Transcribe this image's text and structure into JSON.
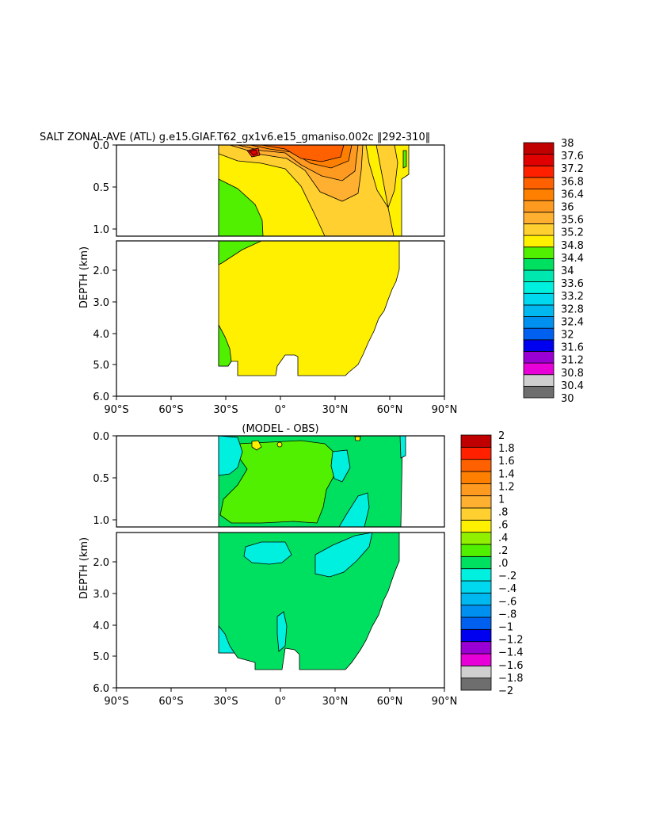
{
  "title": "SALT ZONAL-AVE (ATL) g.e15.GIAF.T62_gx1v6.e15_gmaniso.002c ‖292-310‖",
  "diff_title": "(MODEL - OBS)",
  "palette": {
    "salt": [
      "#6e6e6e",
      "#cfcfcf",
      "#e800d8",
      "#9a00d4",
      "#0000f0",
      "#0060f0",
      "#0090f0",
      "#00b8f0",
      "#00d8f0",
      "#00f0e0",
      "#00e8b0",
      "#00e060",
      "#50f000",
      "#fff000",
      "#ffd030",
      "#ffb030",
      "#ff9a20",
      "#ff8000",
      "#ff6000",
      "#ff2000",
      "#e00000",
      "#c00000"
    ],
    "diff": [
      "#6e6e6e",
      "#cfcfcf",
      "#e800d8",
      "#9a00d4",
      "#0000f0",
      "#0060f0",
      "#0090f0",
      "#00b8f0",
      "#00d8f0",
      "#00f0e0",
      "#00e060",
      "#50f000",
      "#90f000",
      "#fff000",
      "#ffd030",
      "#ffb030",
      "#ff9a20",
      "#ff8000",
      "#ff6000",
      "#ff2000",
      "#c00000"
    ]
  },
  "chart_data": [
    {
      "type": "heatmap",
      "title": "SALT ZONAL-AVE (ATL) g.e15.GIAF.T62_gx1v6.e15_gmaniso.002c ‖292-310‖",
      "ylabel": "DEPTH (km)",
      "x_ticks": [
        "90°S",
        "60°S",
        "30°S",
        "0°",
        "30°N",
        "60°N",
        "90°N"
      ],
      "x_range": [
        -90,
        90
      ],
      "y_ticks_upper": [
        "0.0",
        "0.5",
        "1.0"
      ],
      "y_ticks_lower": [
        "2.0",
        "3.0",
        "4.0",
        "5.0",
        "6.0"
      ],
      "y_range": [
        0,
        6
      ],
      "colorbar_labels": [
        "38",
        "37.6",
        "37.2",
        "36.8",
        "36.4",
        "36",
        "35.6",
        "35.2",
        "34.8",
        "34.4",
        "34",
        "33.6",
        "33.2",
        "32.8",
        "32.4",
        "32",
        "31.6",
        "31.2",
        "30.8",
        "30.4",
        "30"
      ],
      "levels": [
        30,
        30.4,
        30.8,
        31.2,
        31.6,
        32,
        32.4,
        32.8,
        33.2,
        33.6,
        34,
        34.4,
        34.8,
        35.2,
        35.6,
        36,
        36.4,
        36.8,
        37.2,
        37.6,
        38
      ]
    },
    {
      "type": "heatmap",
      "title": "(MODEL - OBS)",
      "ylabel": "DEPTH (km)",
      "x_ticks": [
        "90°S",
        "60°S",
        "30°S",
        "0°",
        "30°N",
        "60°N",
        "90°N"
      ],
      "x_range": [
        -90,
        90
      ],
      "y_ticks_upper": [
        "0.0",
        "0.5",
        "1.0"
      ],
      "y_ticks_lower": [
        "2.0",
        "3.0",
        "4.0",
        "5.0",
        "6.0"
      ],
      "y_range": [
        0,
        6
      ],
      "colorbar_labels": [
        "2",
        "1.8",
        "1.6",
        "1.4",
        "1.2",
        "1",
        ".8",
        ".6",
        ".4",
        ".2",
        ".0",
        "-.2",
        "-.4",
        "-.6",
        "-.8",
        "-1",
        "-1.2",
        "-1.4",
        "-1.6",
        "-1.8",
        "-2"
      ],
      "levels": [
        -2,
        -1.8,
        -1.6,
        -1.4,
        -1.2,
        -1,
        -0.8,
        -0.6,
        -0.4,
        -0.2,
        0,
        0.2,
        0.4,
        0.6,
        0.8,
        1,
        1.2,
        1.4,
        1.6,
        1.8,
        2
      ]
    }
  ]
}
